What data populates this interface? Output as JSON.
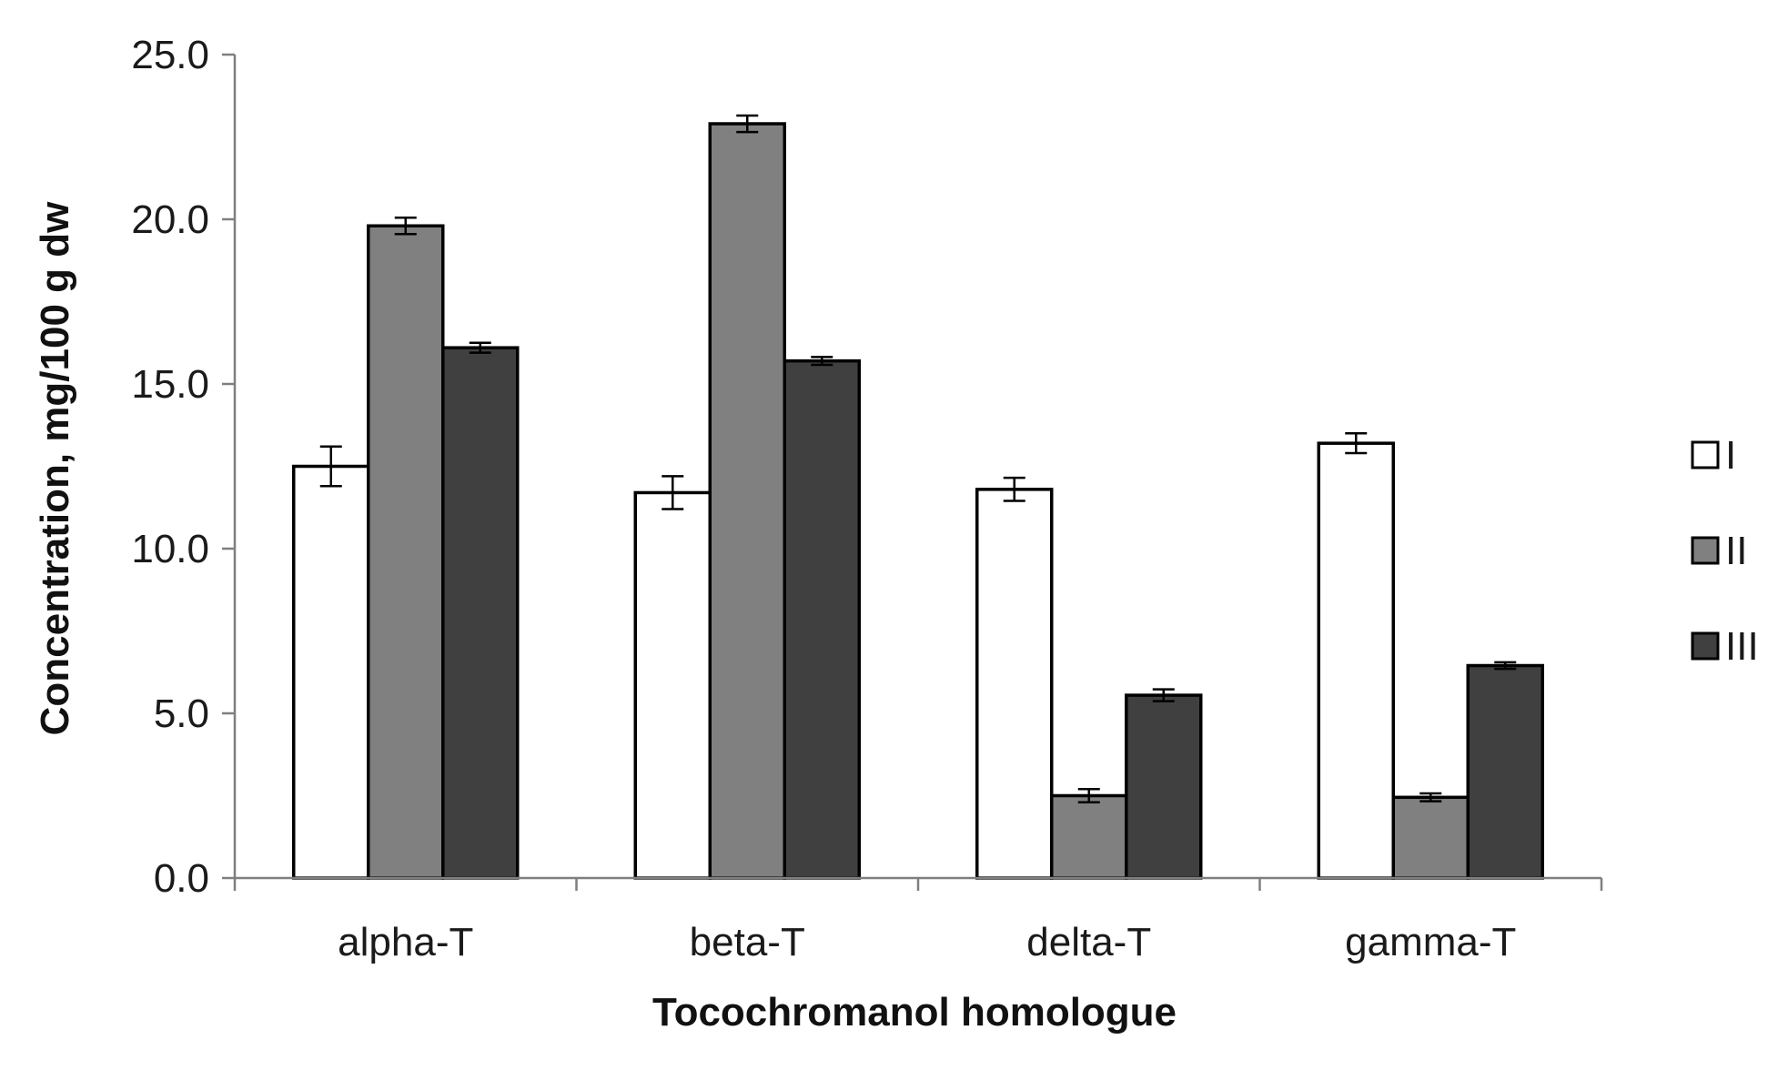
{
  "chart_data": {
    "type": "bar",
    "title": "",
    "xlabel": "Tocochromanol homologue",
    "ylabel": "Concentration, mg/100 g dw",
    "categories": [
      "alpha-T",
      "beta-T",
      "delta-T",
      "gamma-T"
    ],
    "ylim": [
      0,
      25
    ],
    "yticks": [
      0,
      5,
      10,
      15,
      20,
      25
    ],
    "ytick_labels": [
      "0.0",
      "5.0",
      "10.0",
      "15.0",
      "20.0",
      "25.0"
    ],
    "grid": false,
    "legend_position": "right",
    "error_bars": true,
    "series": [
      {
        "name": "I",
        "color": "#ffffff",
        "values": [
          12.5,
          11.7,
          11.8,
          13.2
        ],
        "errors": [
          0.6,
          0.5,
          0.35,
          0.3
        ]
      },
      {
        "name": "II",
        "color": "#808080",
        "values": [
          19.8,
          22.9,
          2.5,
          2.45
        ],
        "errors": [
          0.25,
          0.25,
          0.2,
          0.12
        ]
      },
      {
        "name": "III",
        "color": "#404040",
        "values": [
          16.1,
          15.7,
          5.55,
          6.45
        ],
        "errors": [
          0.15,
          0.12,
          0.18,
          0.1
        ]
      }
    ]
  }
}
